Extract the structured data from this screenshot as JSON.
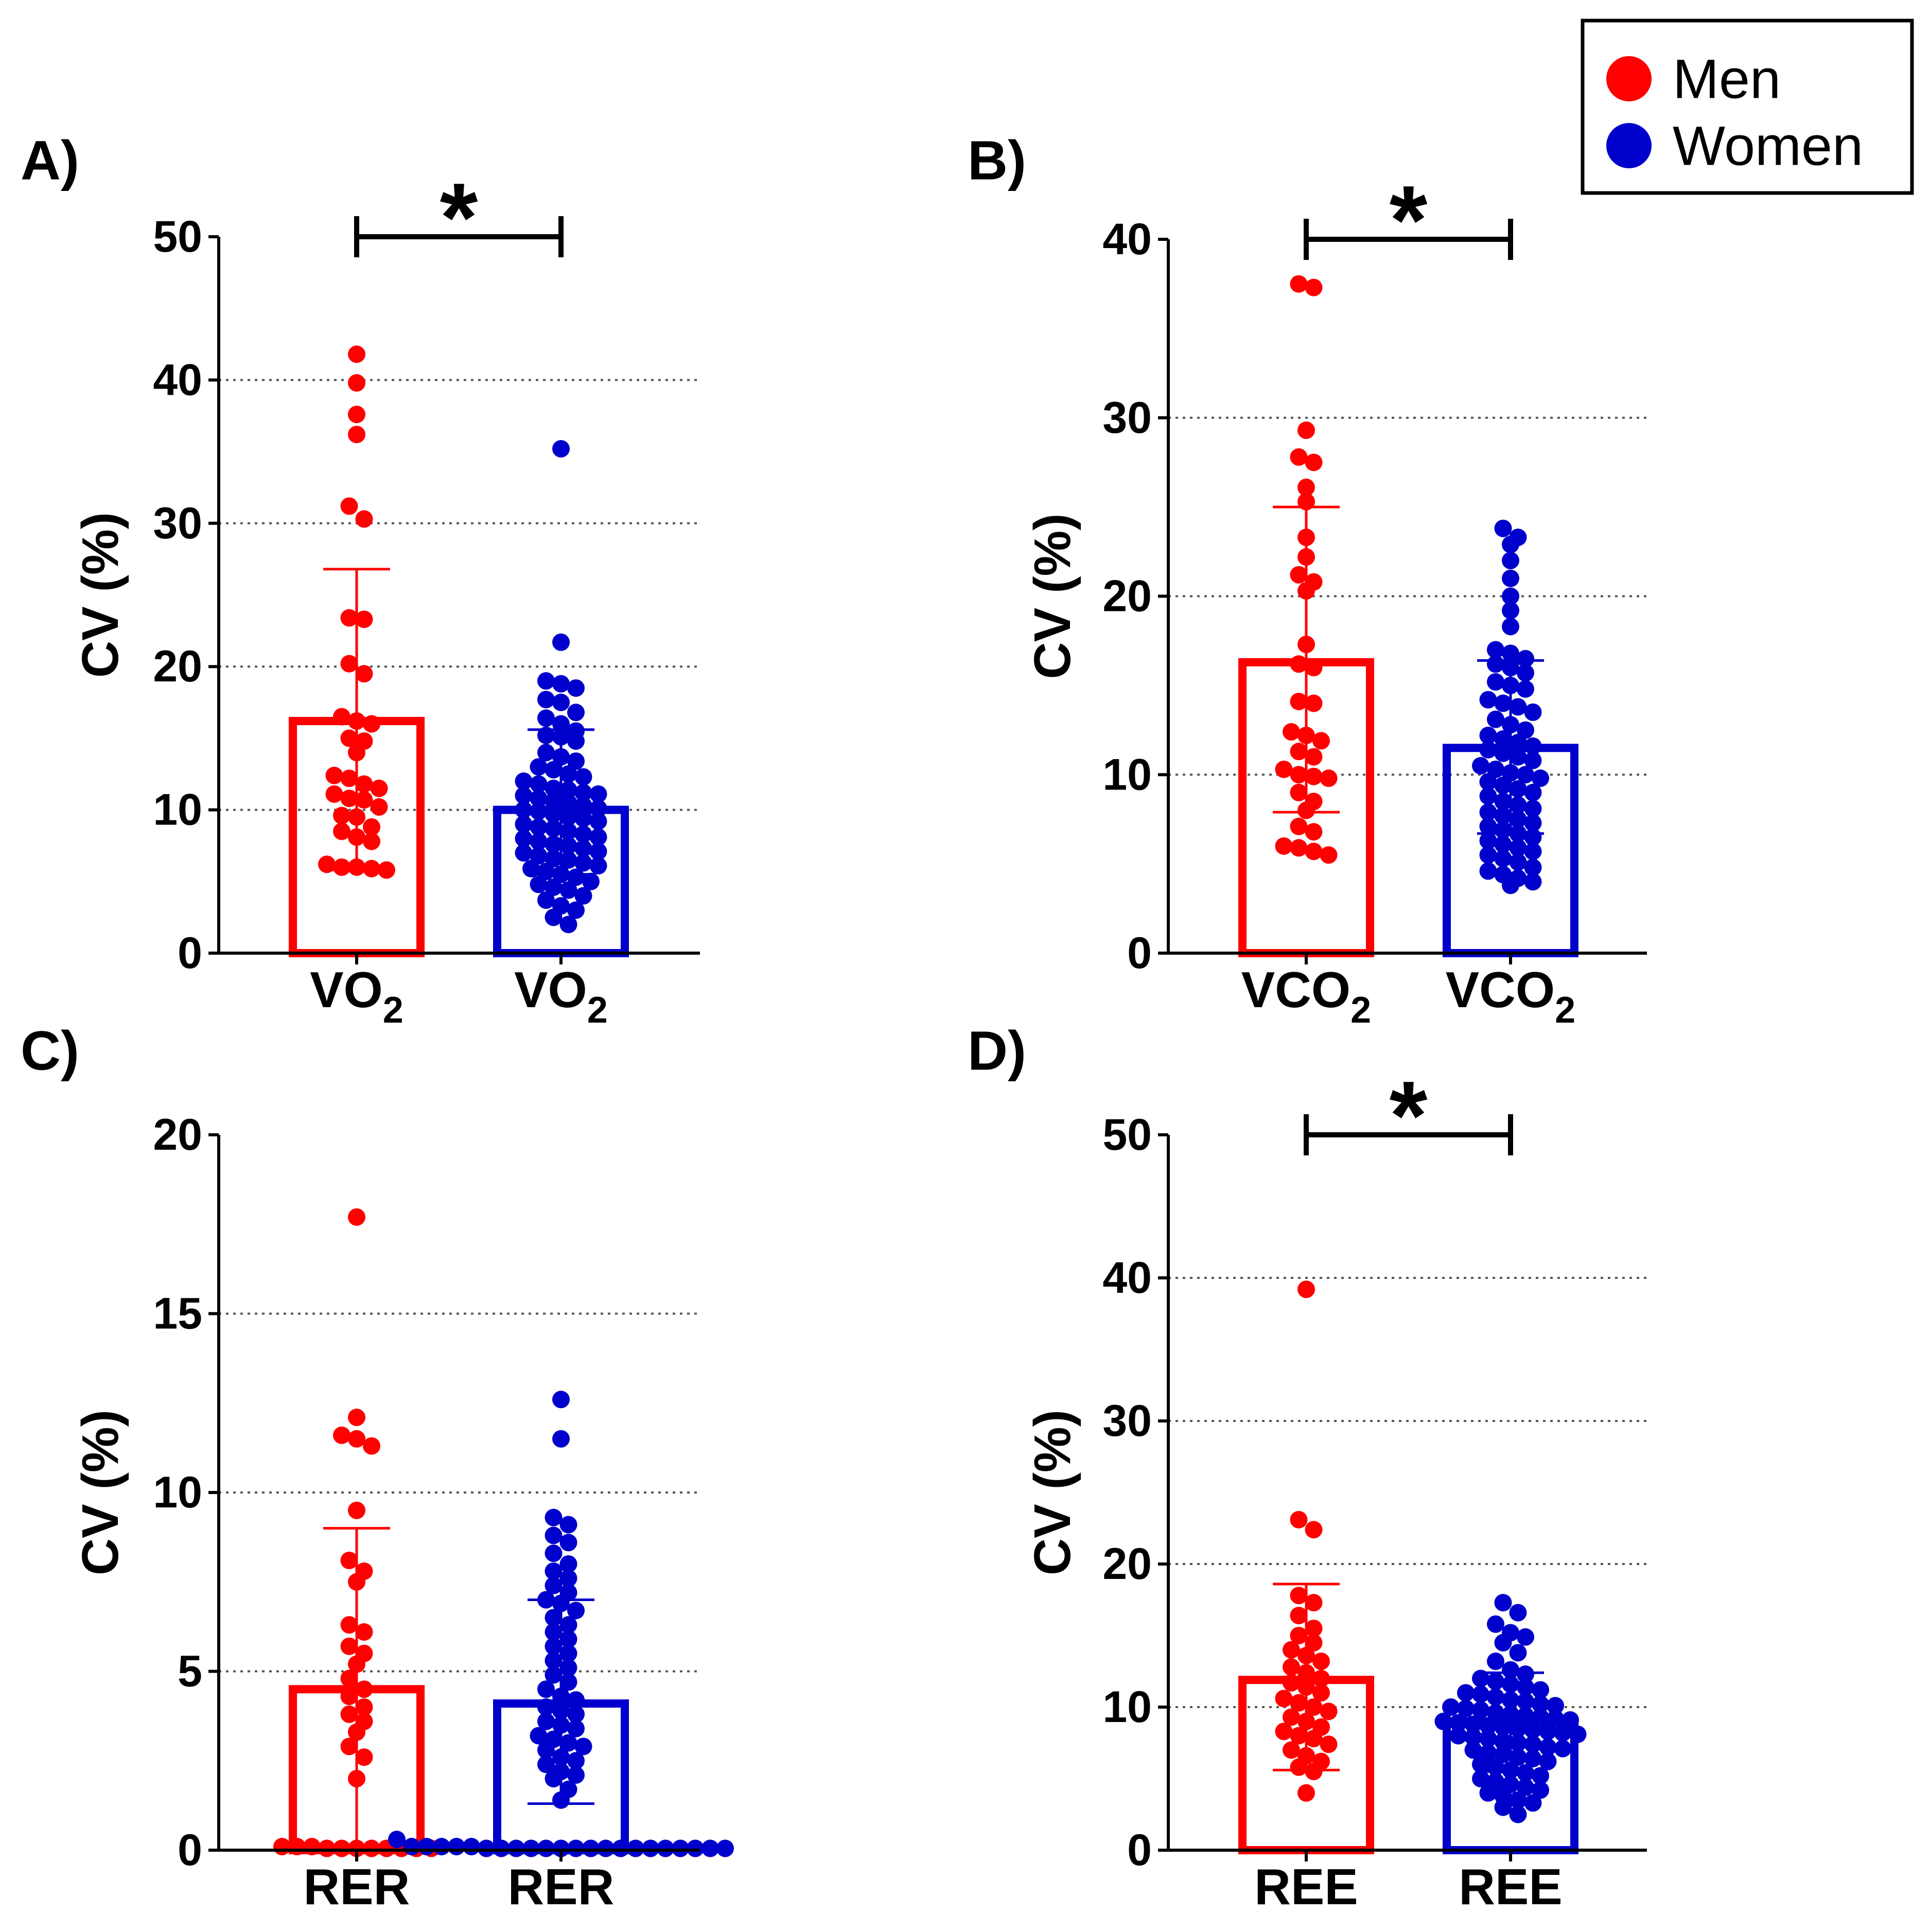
{
  "legend": {
    "items": [
      {
        "label": "Men",
        "color": "#ff0000"
      },
      {
        "label": "Women",
        "color": "#0000cc"
      }
    ]
  },
  "colors": {
    "men": "#ff0000",
    "women": "#0000cc",
    "axis": "#000000",
    "grid": "#555555"
  },
  "chart_data": [
    {
      "panel_label": "A)",
      "type": "bar",
      "ylabel": "CV (%)",
      "ylim": [
        0,
        50
      ],
      "yticks": [
        0,
        10,
        20,
        30,
        40,
        50
      ],
      "grid": [
        10,
        20,
        30,
        40
      ],
      "categories": [
        {
          "label": "VO",
          "sub": "2"
        },
        {
          "label": "VO",
          "sub": "2"
        }
      ],
      "significance": {
        "from": 0,
        "to": 1,
        "label": "*"
      },
      "series": [
        {
          "name": "Men",
          "mean": 16.2,
          "error_upper": 26.8,
          "error_lower": 5.8,
          "points": [
            41.8,
            39.8,
            37.6,
            36.2,
            31.2,
            30.3,
            23.4,
            23.3,
            20.2,
            19.5,
            16.5,
            16.2,
            16.0,
            15.0,
            14.8,
            14.0,
            12.4,
            12.2,
            11.8,
            11.5,
            11.1,
            10.8,
            10.7,
            10.2,
            9.6,
            9.5,
            8.8,
            8.5,
            8.1,
            7.8,
            6.2,
            6.0,
            6.0,
            5.9,
            5.8
          ]
        },
        {
          "name": "Women",
          "mean": 10.0,
          "error_upper": 15.6,
          "error_lower": 5.5,
          "points": [
            35.2,
            21.7,
            19.0,
            18.8,
            18.5,
            17.7,
            17.5,
            16.8,
            16.4,
            16.0,
            15.5,
            15.2,
            15.1,
            14.8,
            14.0,
            13.7,
            13.4,
            13.0,
            12.8,
            12.5,
            12.3,
            12.0,
            11.8,
            11.5,
            11.4,
            11.2,
            11.1,
            11.0,
            10.8,
            10.6,
            10.5,
            10.3,
            10.1,
            10.0,
            9.9,
            9.7,
            9.5,
            9.4,
            9.2,
            9.0,
            8.8,
            8.7,
            8.5,
            8.3,
            8.1,
            8.0,
            7.8,
            7.6,
            7.5,
            7.3,
            7.1,
            7.0,
            6.8,
            6.6,
            6.5,
            6.3,
            6.1,
            5.9,
            5.7,
            5.5,
            5.3,
            5.0,
            4.8,
            4.6,
            4.4,
            4.0,
            3.7,
            3.3,
            3.0,
            2.5,
            2.0
          ]
        }
      ]
    },
    {
      "panel_label": "B)",
      "type": "bar",
      "ylabel": "CV (%)",
      "ylim": [
        0,
        40
      ],
      "yticks": [
        0,
        10,
        20,
        30,
        40
      ],
      "grid": [
        10,
        20,
        30
      ],
      "categories": [
        {
          "label": "VCO",
          "sub": "2"
        },
        {
          "label": "VCO",
          "sub": "2"
        }
      ],
      "significance": {
        "from": 0,
        "to": 1,
        "label": "*"
      },
      "series": [
        {
          "name": "Men",
          "mean": 16.3,
          "error_upper": 25.0,
          "error_lower": 7.9,
          "points": [
            37.5,
            37.3,
            29.3,
            27.8,
            27.5,
            26.1,
            25.3,
            23.3,
            22.2,
            21.2,
            20.8,
            20.3,
            17.3,
            16.2,
            16.0,
            14.1,
            14.0,
            12.4,
            12.2,
            11.9,
            11.3,
            11.0,
            10.3,
            10.0,
            9.9,
            9.8,
            9.0,
            8.5,
            8.0,
            7.1,
            6.8,
            6.0,
            5.9,
            5.7,
            5.5
          ]
        },
        {
          "name": "Women",
          "mean": 11.5,
          "error_upper": 16.4,
          "error_lower": 6.7,
          "points": [
            23.8,
            23.3,
            22.9,
            22.0,
            21.0,
            20.0,
            19.2,
            18.3,
            17.0,
            16.8,
            16.5,
            16.2,
            16.0,
            15.7,
            15.2,
            15.0,
            14.8,
            14.2,
            14.0,
            13.8,
            13.5,
            13.1,
            12.8,
            12.5,
            12.2,
            12.0,
            11.8,
            11.6,
            11.4,
            11.2,
            11.0,
            10.8,
            10.5,
            10.3,
            10.1,
            10.0,
            9.8,
            9.6,
            9.4,
            9.2,
            9.0,
            8.8,
            8.5,
            8.3,
            8.1,
            7.9,
            7.7,
            7.5,
            7.3,
            7.1,
            6.9,
            6.7,
            6.5,
            6.3,
            6.1,
            5.9,
            5.7,
            5.5,
            5.3,
            5.1,
            4.8,
            4.6,
            4.4,
            4.2,
            4.0,
            3.8
          ]
        }
      ]
    },
    {
      "panel_label": "C)",
      "type": "bar",
      "ylabel": "CV (%)",
      "ylim": [
        0,
        20
      ],
      "yticks": [
        0,
        5,
        10,
        15,
        20
      ],
      "grid": [
        5,
        10,
        15
      ],
      "categories": [
        {
          "label": "RER",
          "sub": ""
        },
        {
          "label": "RER",
          "sub": ""
        }
      ],
      "significance": null,
      "series": [
        {
          "name": "Men",
          "mean": 4.5,
          "error_upper": 9.0,
          "error_lower": 0.0,
          "points": [
            17.7,
            12.1,
            11.6,
            11.5,
            11.3,
            9.5,
            8.1,
            7.8,
            7.5,
            6.3,
            6.1,
            5.7,
            5.5,
            5.2,
            4.8,
            4.5,
            4.3,
            4.0,
            3.8,
            3.6,
            3.3,
            2.9,
            2.6,
            2.0,
            0.1,
            0.1,
            0.1,
            0.05,
            0.05,
            0.05,
            0.05,
            0.05,
            0.05,
            0.05,
            0.05
          ]
        },
        {
          "name": "Women",
          "mean": 4.1,
          "error_upper": 7.0,
          "error_lower": 1.3,
          "points": [
            12.6,
            11.5,
            9.3,
            9.1,
            8.8,
            8.6,
            8.3,
            8.0,
            7.8,
            7.6,
            7.4,
            7.2,
            7.0,
            6.9,
            6.7,
            6.5,
            6.3,
            6.1,
            5.9,
            5.7,
            5.5,
            5.3,
            5.1,
            4.9,
            4.7,
            4.5,
            4.3,
            4.2,
            4.0,
            3.9,
            3.8,
            3.6,
            3.5,
            3.4,
            3.2,
            3.1,
            3.0,
            2.9,
            2.8,
            2.6,
            2.5,
            2.4,
            2.2,
            2.1,
            2.0,
            1.7,
            1.4,
            0.3,
            0.1,
            0.1,
            0.1,
            0.1,
            0.1,
            0.05,
            0.05,
            0.05,
            0.05,
            0.05,
            0.05,
            0.05,
            0.05,
            0.05,
            0.05,
            0.05,
            0.05,
            0.05,
            0.05,
            0.05,
            0.05,
            0.05
          ]
        }
      ]
    },
    {
      "panel_label": "D)",
      "type": "bar",
      "ylabel": "CV (%)",
      "ylim": [
        0,
        50
      ],
      "yticks": [
        0,
        10,
        20,
        30,
        40,
        50
      ],
      "grid": [
        10,
        20,
        30,
        40
      ],
      "categories": [
        {
          "label": "REE",
          "sub": ""
        },
        {
          "label": "REE",
          "sub": ""
        }
      ],
      "significance": {
        "from": 0,
        "to": 1,
        "label": "*"
      },
      "series": [
        {
          "name": "Men",
          "mean": 11.9,
          "error_upper": 18.6,
          "error_lower": 5.6,
          "points": [
            39.2,
            23.1,
            22.4,
            17.8,
            17.3,
            16.4,
            15.5,
            15.0,
            14.5,
            14.0,
            13.6,
            13.2,
            12.8,
            12.4,
            12.0,
            11.7,
            11.4,
            11.0,
            10.6,
            10.3,
            10.0,
            9.7,
            9.3,
            9.0,
            8.6,
            8.3,
            8.0,
            7.8,
            7.4,
            7.0,
            6.6,
            6.2,
            5.8,
            5.5,
            4.0
          ]
        },
        {
          "name": "Women",
          "mean": 9.0,
          "error_upper": 12.4,
          "error_lower": 5.5,
          "points": [
            17.3,
            16.6,
            15.8,
            15.2,
            14.9,
            14.5,
            13.8,
            13.2,
            12.6,
            12.3,
            12.0,
            11.8,
            11.6,
            11.4,
            11.2,
            11.0,
            10.9,
            10.7,
            10.5,
            10.4,
            10.2,
            10.1,
            10.0,
            9.9,
            9.8,
            9.6,
            9.5,
            9.4,
            9.3,
            9.2,
            9.1,
            9.0,
            8.9,
            8.8,
            8.7,
            8.6,
            8.5,
            8.4,
            8.3,
            8.2,
            8.1,
            8.0,
            7.9,
            7.8,
            7.6,
            7.5,
            7.4,
            7.2,
            7.1,
            7.0,
            6.8,
            6.7,
            6.5,
            6.4,
            6.2,
            6.0,
            5.8,
            5.6,
            5.4,
            5.2,
            5.0,
            4.8,
            4.6,
            4.4,
            4.2,
            4.0,
            3.8,
            3.5,
            3.3,
            3.0,
            2.5
          ]
        }
      ]
    }
  ]
}
